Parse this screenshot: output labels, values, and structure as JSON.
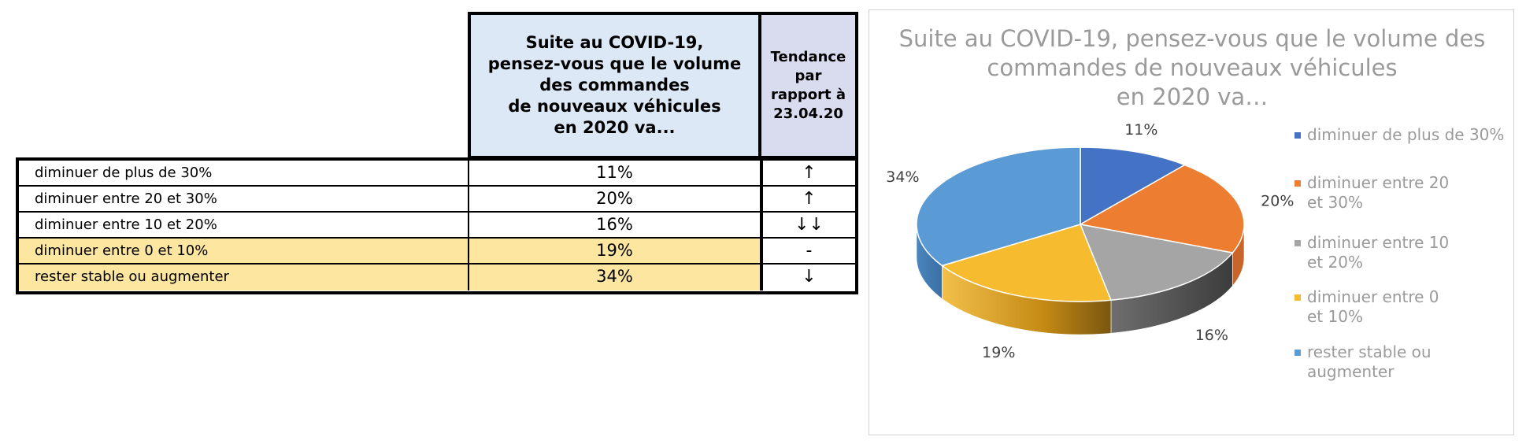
{
  "table": {
    "question_header": "Suite au COVID-19,\npensez-vous que le volume\ndes commandes\nde nouveaux véhicules\nen 2020 va...",
    "trend_header": "Tendance\npar\nrapport à\n23.04.20",
    "rows": [
      {
        "label": "diminuer de plus de 30%",
        "value": "11%",
        "trend": "↑",
        "highlight": false
      },
      {
        "label": "diminuer entre 20 et 30%",
        "value": "20%",
        "trend": "↑",
        "highlight": false
      },
      {
        "label": "diminuer entre 10 et 20%",
        "value": "16%",
        "trend": "↓↓",
        "highlight": false
      },
      {
        "label": "diminuer entre 0 et 10%",
        "value": "19%",
        "trend": "-",
        "highlight": true
      },
      {
        "label": "rester stable ou augmenter",
        "value": "34%",
        "trend": "↓",
        "highlight": true
      }
    ],
    "highlight_color": "#fde6a0",
    "question_header_color": "#dce8f5",
    "trend_header_color": "#d9dcef"
  },
  "chart_data": {
    "type": "pie",
    "title": "Suite au COVID-19, pensez-vous que le volume des\ncommandes de nouveaux véhicules\nen 2020 va…",
    "categories": [
      "diminuer de plus de 30%",
      "diminuer entre 20 et 30%",
      "diminuer entre 10 et 20%",
      "diminuer entre 0 et 10%",
      "rester stable ou augmenter"
    ],
    "legend_labels": [
      "diminuer de plus de 30%",
      "diminuer entre 20\net 30%",
      "diminuer entre 10\net 20%",
      "diminuer entre 0\net 10%",
      "rester stable ou\naugmenter"
    ],
    "values": [
      11,
      20,
      16,
      19,
      34
    ],
    "data_labels": [
      "11%",
      "20%",
      "16%",
      "19%",
      "34%"
    ],
    "colors": [
      "#4472c4",
      "#ed7d31",
      "#a5a5a5",
      "#f6bb2f",
      "#5b9bd5"
    ],
    "style": "3d",
    "legend_position": "right"
  }
}
